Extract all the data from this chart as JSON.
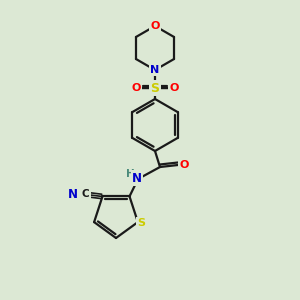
{
  "background_color": "#dce8d4",
  "bond_color": "#1a1a1a",
  "atom_colors": {
    "O": "#ff0000",
    "N": "#0000cc",
    "S": "#cccc00",
    "C": "#1a1a1a",
    "H": "#4a8a7a"
  },
  "figsize": [
    3.0,
    3.0
  ],
  "dpi": 100
}
